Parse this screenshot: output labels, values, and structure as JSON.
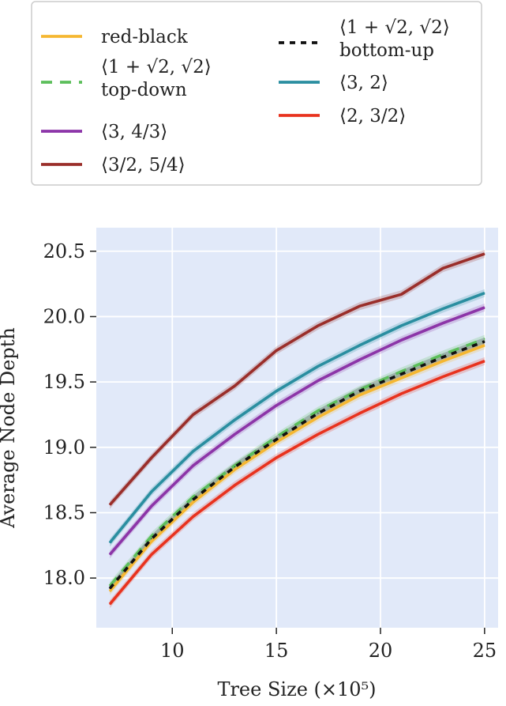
{
  "chart_data": {
    "type": "line",
    "title": "",
    "xlabel": "Tree Size (×10⁵)",
    "ylabel": "Average Node Depth",
    "xlim": [
      6.35,
      25.65
    ],
    "ylim": [
      17.62,
      20.68
    ],
    "xticks": [
      10,
      15,
      20,
      25
    ],
    "yticks": [
      18.0,
      18.5,
      19.0,
      19.5,
      20.0,
      20.5
    ],
    "xtick_labels": [
      "10",
      "15",
      "20",
      "25"
    ],
    "ytick_labels": [
      "18.0",
      "18.5",
      "19.0",
      "19.5",
      "20.0",
      "20.5"
    ],
    "grid": true,
    "legend_position": "top, above plot",
    "background_color": "#e1e9f9",
    "x": [
      7,
      9,
      11,
      13,
      15,
      17,
      19,
      21,
      23,
      25
    ],
    "series": [
      {
        "name": "red-black",
        "color": "#f5b731",
        "dash": "solid",
        "values": [
          17.9,
          18.28,
          18.58,
          18.83,
          19.04,
          19.23,
          19.4,
          19.53,
          19.66,
          19.78
        ]
      },
      {
        "name": "⟨1 + √2, √2⟩ top-down",
        "name_lines": [
          "⟨1 + √2, √2⟩",
          "top-down"
        ],
        "color": "#5cbf5b",
        "dash": "dashed",
        "values": [
          17.94,
          18.32,
          18.62,
          18.86,
          19.08,
          19.28,
          19.44,
          19.58,
          19.71,
          19.83
        ]
      },
      {
        "name": "⟨3, 4/3⟩",
        "color": "#8c35a8",
        "dash": "solid",
        "values": [
          18.18,
          18.55,
          18.86,
          19.1,
          19.32,
          19.51,
          19.67,
          19.82,
          19.95,
          20.07
        ]
      },
      {
        "name": "⟨3/2, 5/4⟩",
        "color": "#9a2e2a",
        "dash": "solid",
        "values": [
          18.56,
          18.92,
          19.25,
          19.47,
          19.74,
          19.93,
          20.08,
          20.17,
          20.37,
          20.48
        ]
      },
      {
        "name": "⟨1 + √2, √2⟩ bottom-up",
        "name_lines": [
          "⟨1 + √2, √2⟩",
          "bottom-up"
        ],
        "color": "#111111",
        "dash": "dotted",
        "values": [
          17.92,
          18.3,
          18.6,
          18.85,
          19.06,
          19.26,
          19.43,
          19.56,
          19.69,
          19.81
        ]
      },
      {
        "name": "⟨3, 2⟩",
        "color": "#2a8ea0",
        "dash": "solid",
        "values": [
          18.27,
          18.66,
          18.97,
          19.21,
          19.43,
          19.62,
          19.78,
          19.93,
          20.06,
          20.18
        ]
      },
      {
        "name": "⟨2, 3/2⟩",
        "color": "#e8321e",
        "dash": "solid",
        "values": [
          17.8,
          18.18,
          18.47,
          18.71,
          18.92,
          19.1,
          19.26,
          19.41,
          19.54,
          19.66
        ]
      }
    ]
  }
}
